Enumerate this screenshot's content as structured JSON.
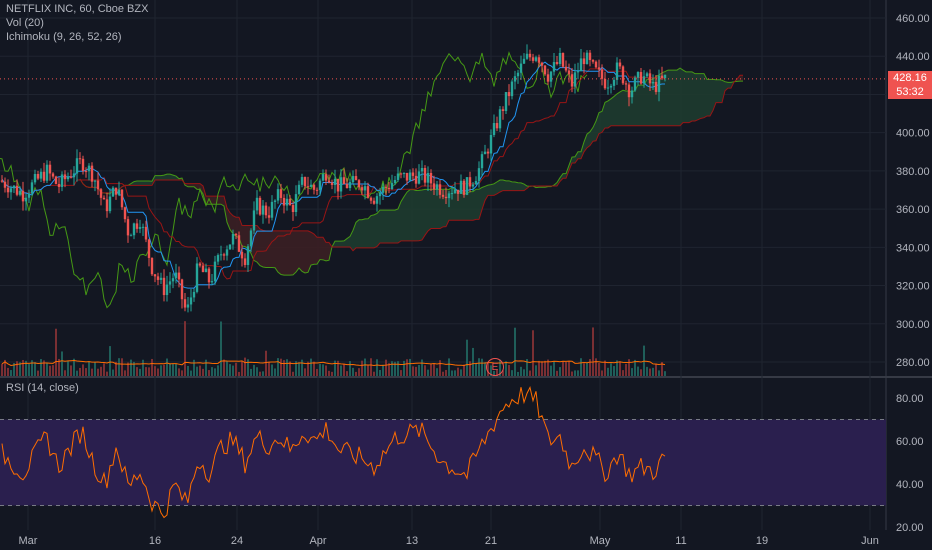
{
  "header": {
    "symbol_line": "NETFLIX INC, 60, Cboe BZX",
    "volume_label": "Vol (20)",
    "ichimoku_label": "Ichimoku (9, 26, 52, 26)",
    "rsi_label": "RSI (14, close)"
  },
  "last_price": {
    "price": "428.16",
    "countdown": "53:32"
  },
  "earnings_badge": "E",
  "colors": {
    "background": "#131722",
    "up": "#26a69a",
    "down": "#ef5350",
    "ichimoku_conversion": "#2196f3",
    "ichimoku_base": "#991515",
    "ichimoku_lagging": "#459915",
    "rsi_line": "#ff6d00",
    "rsi_band": "#2a1f4e",
    "cloud_bull": "#1e3b2f",
    "cloud_bear": "#3b1f24"
  },
  "chart_data": [
    {
      "type": "candlestick",
      "title": "NETFLIX INC, 60, Cboe BZX",
      "y_axis": {
        "ticks": [
          280,
          300,
          320,
          340,
          360,
          380,
          400,
          420,
          440,
          460
        ],
        "range": [
          272,
          468
        ]
      },
      "x_axis": {
        "ticks": [
          "Mar",
          "16",
          "24",
          "Apr",
          "13",
          "21",
          "May",
          "11",
          "19",
          "Jun"
        ]
      },
      "current_price": 428.16,
      "close_trend": [
        [
          "Mar 1",
          375
        ],
        [
          "Mar 3",
          368
        ],
        [
          "Mar 5",
          380
        ],
        [
          "Mar 6",
          372
        ],
        [
          "Mar 8",
          385
        ],
        [
          "Mar 9",
          378
        ],
        [
          "Mar 10",
          360
        ],
        [
          "Mar 11",
          372
        ],
        [
          "Mar 12",
          348
        ],
        [
          "Mar 13",
          355
        ],
        [
          "Mar 14",
          330
        ],
        [
          "Mar 15",
          318
        ],
        [
          "Mar 16",
          326
        ],
        [
          "Mar 17",
          305
        ],
        [
          "Mar 18",
          330
        ],
        [
          "Mar 19",
          322
        ],
        [
          "Mar 20",
          338
        ],
        [
          "Mar 21",
          345
        ],
        [
          "Mar 22",
          335
        ],
        [
          "Mar 23",
          362
        ],
        [
          "Mar 24",
          358
        ],
        [
          "Mar 25",
          368
        ],
        [
          "Mar 26",
          360
        ],
        [
          "Mar 27",
          375
        ],
        [
          "Mar 28",
          370
        ],
        [
          "Mar 29",
          380
        ],
        [
          "Mar 30",
          372
        ],
        [
          "Apr 1",
          374
        ],
        [
          "Apr 2",
          366
        ],
        [
          "Apr 4",
          376
        ],
        [
          "Apr 6",
          378
        ],
        [
          "Apr 8",
          370
        ],
        [
          "Apr 10",
          372
        ],
        [
          "Apr 11",
          380
        ],
        [
          "Apr 12",
          395
        ],
        [
          "Apr 13",
          412
        ],
        [
          "Apr 14",
          426
        ],
        [
          "Apr 15",
          438
        ],
        [
          "Apr 16",
          442
        ],
        [
          "Apr 17",
          430
        ],
        [
          "Apr 18",
          438
        ],
        [
          "Apr 19",
          425
        ],
        [
          "Apr 20",
          440
        ],
        [
          "Apr 21",
          432
        ],
        [
          "Apr 22",
          426
        ],
        [
          "Apr 23",
          434
        ],
        [
          "Apr 24",
          422
        ],
        [
          "Apr 25",
          430
        ],
        [
          "Apr 26",
          424
        ],
        [
          "Apr 27",
          428
        ]
      ]
    },
    {
      "type": "line",
      "title": "RSI (14, close)",
      "y_axis": {
        "ticks": [
          20,
          40,
          60,
          80
        ],
        "range": [
          17,
          87
        ]
      },
      "bands": {
        "upper": 70,
        "lower": 30
      },
      "values": [
        [
          "Mar 1",
          55
        ],
        [
          "Mar 3",
          45
        ],
        [
          "Mar 5",
          62
        ],
        [
          "Mar 6",
          48
        ],
        [
          "Mar 8",
          65
        ],
        [
          "Mar 9",
          50
        ],
        [
          "Mar 10",
          40
        ],
        [
          "Mar 11",
          58
        ],
        [
          "Mar 12",
          38
        ],
        [
          "Mar 13",
          46
        ],
        [
          "Mar 14",
          32
        ],
        [
          "Mar 15",
          26
        ],
        [
          "Mar 16",
          40
        ],
        [
          "Mar 17",
          30
        ],
        [
          "Mar 18",
          52
        ],
        [
          "Mar 19",
          45
        ],
        [
          "Mar 20",
          58
        ],
        [
          "Mar 21",
          60
        ],
        [
          "Mar 22",
          50
        ],
        [
          "Mar 23",
          62
        ],
        [
          "Mar 24",
          58
        ],
        [
          "Mar 25",
          62
        ],
        [
          "Mar 26",
          55
        ],
        [
          "Mar 27",
          65
        ],
        [
          "Mar 28",
          60
        ],
        [
          "Mar 29",
          66
        ],
        [
          "Mar 30",
          56
        ],
        [
          "Apr 1",
          52
        ],
        [
          "Apr 2",
          48
        ],
        [
          "Apr 4",
          62
        ],
        [
          "Apr 6",
          65
        ],
        [
          "Apr 8",
          50
        ],
        [
          "Apr 10",
          44
        ],
        [
          "Apr 11",
          55
        ],
        [
          "Apr 12",
          65
        ],
        [
          "Apr 13",
          75
        ],
        [
          "Apr 14",
          80
        ],
        [
          "Apr 15",
          82
        ],
        [
          "Apr 16",
          78
        ],
        [
          "Apr 17",
          60
        ],
        [
          "Apr 18",
          62
        ],
        [
          "Apr 19",
          48
        ],
        [
          "Apr 20",
          58
        ],
        [
          "Apr 21",
          52
        ],
        [
          "Apr 22",
          45
        ],
        [
          "Apr 23",
          55
        ],
        [
          "Apr 24",
          44
        ],
        [
          "Apr 25",
          48
        ],
        [
          "Apr 26",
          46
        ],
        [
          "Apr 27",
          52
        ]
      ]
    }
  ]
}
